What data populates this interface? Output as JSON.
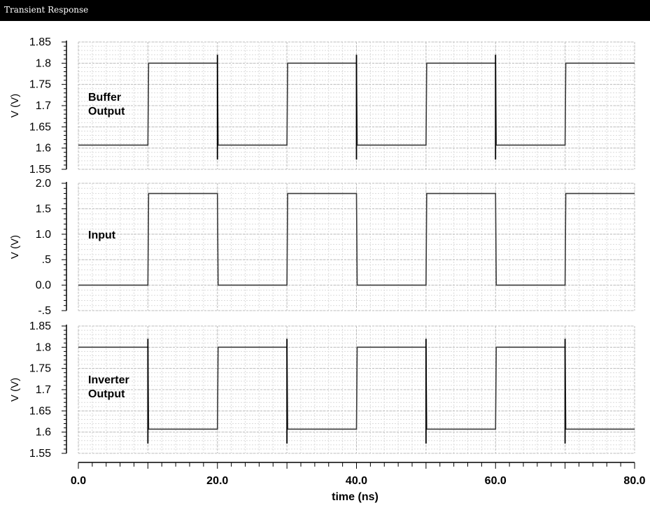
{
  "window": {
    "title": "Transient Response"
  },
  "chart_data": {
    "type": "line",
    "title": "Transient Response",
    "xlabel": "time (ns)",
    "x_unit": "ns",
    "xlim": [
      0,
      80
    ],
    "xticks": [
      "0.0",
      "20.0",
      "40.0",
      "60.0",
      "80.0"
    ],
    "x_tick_values": [
      0,
      20,
      40,
      60,
      80
    ],
    "grid": true,
    "series_color": "#3a3a3a",
    "panels": [
      {
        "annotation": [
          "Buffer",
          "Output"
        ],
        "ylabel": "V (V)",
        "ylim": [
          1.55,
          1.85
        ],
        "yticks": [
          "1.85",
          "1.8",
          "1.75",
          "1.7",
          "1.65",
          "1.6",
          "1.55"
        ],
        "ytick_values": [
          1.85,
          1.8,
          1.75,
          1.7,
          1.65,
          1.6,
          1.55
        ],
        "low": 1.607,
        "high": 1.8,
        "start_high": false,
        "spikes": true,
        "spike_up": 1.82,
        "spike_down": 1.573
      },
      {
        "annotation": [
          "Input"
        ],
        "ylabel": "V (V)",
        "ylim": [
          -0.5,
          2.0
        ],
        "yticks": [
          "2.0",
          "1.5",
          "1.0",
          ".5",
          "0.0",
          "-.5"
        ],
        "ytick_values": [
          2.0,
          1.5,
          1.0,
          0.5,
          0.0,
          -0.5
        ],
        "low": 0.0,
        "high": 1.8,
        "start_high": false,
        "spikes": false
      },
      {
        "annotation": [
          "Inverter",
          "Output"
        ],
        "ylabel": "V (V)",
        "ylim": [
          1.55,
          1.85
        ],
        "yticks": [
          "1.85",
          "1.8",
          "1.75",
          "1.7",
          "1.65",
          "1.6",
          "1.55"
        ],
        "ytick_values": [
          1.85,
          1.8,
          1.75,
          1.7,
          1.65,
          1.6,
          1.55
        ],
        "low": 1.607,
        "high": 1.8,
        "start_high": true,
        "spikes": true,
        "spike_up": 1.82,
        "spike_down": 1.573
      }
    ],
    "transition_times": [
      10,
      20,
      30,
      40,
      50,
      60,
      70
    ]
  }
}
